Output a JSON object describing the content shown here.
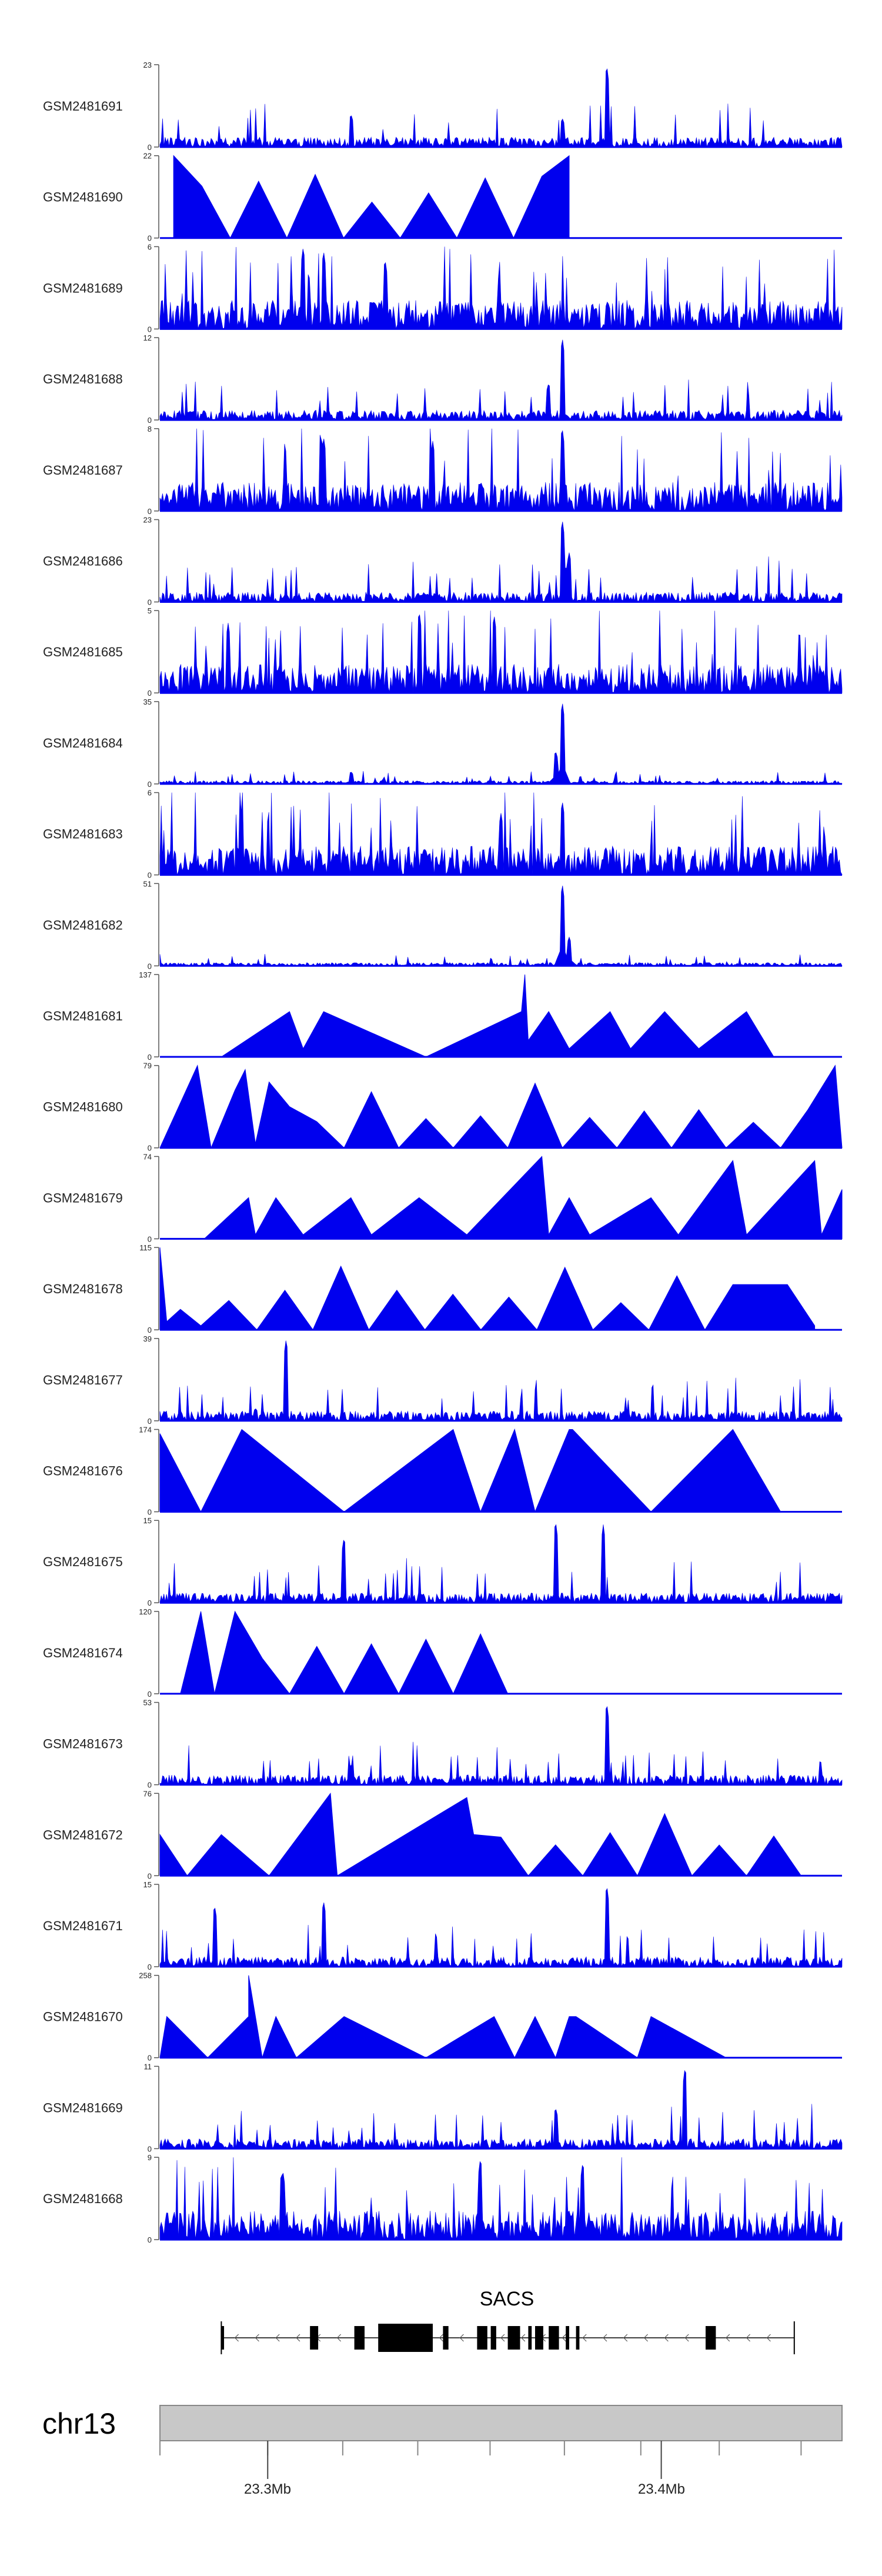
{
  "chart_data": {
    "type": "area",
    "colors": {
      "signal": "#0000ee",
      "axis": "#555555",
      "ideogram_fill": "#c8c8c8",
      "ideogram_stroke": "#888888",
      "gene": "#000000"
    },
    "tracks": [
      {
        "label": "GSM2481691",
        "ylim": [
          0,
          23
        ],
        "pattern": "noisy",
        "peaks": [
          [
            0.28,
            0.4
          ],
          [
            0.59,
            0.35
          ],
          [
            0.655,
            1.0
          ]
        ]
      },
      {
        "label": "GSM2481690",
        "ylim": [
          0,
          22
        ],
        "pattern": "triangles",
        "peaks": [
          [
            0.02,
            1.0
          ],
          [
            0.6,
            1.0
          ],
          [
            0.56,
            0.75
          ]
        ]
      },
      {
        "label": "GSM2481689",
        "ylim": [
          0,
          6
        ],
        "pattern": "dense",
        "peaks": [
          [
            0.21,
            1.0
          ],
          [
            0.24,
            0.95
          ],
          [
            0.33,
            0.85
          ]
        ]
      },
      {
        "label": "GSM2481688",
        "ylim": [
          0,
          12
        ],
        "pattern": "noisy",
        "peaks": [
          [
            0.59,
            1.0
          ],
          [
            0.57,
            0.45
          ]
        ]
      },
      {
        "label": "GSM2481687",
        "ylim": [
          0,
          8
        ],
        "pattern": "dense",
        "peaks": [
          [
            0.59,
            1.0
          ],
          [
            0.24,
            0.9
          ],
          [
            0.4,
            0.85
          ]
        ]
      },
      {
        "label": "GSM2481686",
        "ylim": [
          0,
          23
        ],
        "pattern": "noisy",
        "peaks": [
          [
            0.59,
            1.0
          ],
          [
            0.6,
            0.6
          ]
        ]
      },
      {
        "label": "GSM2481685",
        "ylim": [
          0,
          5
        ],
        "pattern": "dense",
        "peaks": [
          [
            0.38,
            1.0
          ],
          [
            0.49,
            0.95
          ],
          [
            0.1,
            0.85
          ]
        ]
      },
      {
        "label": "GSM2481684",
        "ylim": [
          0,
          35
        ],
        "pattern": "peaked",
        "peaks": [
          [
            0.59,
            1.0
          ],
          [
            0.28,
            0.15
          ],
          [
            0.58,
            0.4
          ]
        ]
      },
      {
        "label": "GSM2481683",
        "ylim": [
          0,
          6
        ],
        "pattern": "dense",
        "peaks": [
          [
            0.59,
            0.9
          ],
          [
            0.12,
            0.8
          ],
          [
            0.5,
            0.75
          ]
        ]
      },
      {
        "label": "GSM2481682",
        "ylim": [
          0,
          51
        ],
        "pattern": "peaked",
        "peaks": [
          [
            0.59,
            1.0
          ],
          [
            0.6,
            0.35
          ]
        ]
      },
      {
        "label": "GSM2481681",
        "ylim": [
          0,
          137
        ],
        "pattern": "triangles",
        "peaks": [
          [
            0.09,
            0
          ],
          [
            0.19,
            0.55
          ],
          [
            0.21,
            0.1
          ],
          [
            0.24,
            0.55
          ],
          [
            0.39,
            0
          ],
          [
            0.53,
            0.55
          ],
          [
            0.535,
            1.0
          ],
          [
            0.54,
            0.2
          ],
          [
            0.57,
            0.55
          ],
          [
            0.6,
            0.1
          ],
          [
            0.66,
            0.55
          ],
          [
            0.69,
            0.1
          ],
          [
            0.74,
            0.55
          ],
          [
            0.79,
            0.1
          ],
          [
            0.86,
            0.55
          ],
          [
            0.9,
            0
          ]
        ]
      },
      {
        "label": "GSM2481680",
        "ylim": [
          0,
          79
        ],
        "pattern": "triangles",
        "peaks": [
          [
            0.0,
            0
          ],
          [
            0.055,
            1.0
          ],
          [
            0.075,
            0
          ],
          [
            0.11,
            0.7
          ],
          [
            0.125,
            0.95
          ],
          [
            0.14,
            0.05
          ],
          [
            0.16,
            0.8
          ],
          [
            0.19,
            0.5
          ],
          [
            0.99,
            1.0
          ],
          [
            1.0,
            0
          ]
        ]
      },
      {
        "label": "GSM2481679",
        "ylim": [
          0,
          74
        ],
        "pattern": "triangles",
        "peaks": [
          [
            0.065,
            0
          ],
          [
            0.13,
            0.5
          ],
          [
            0.14,
            0.05
          ],
          [
            0.17,
            0.5
          ],
          [
            0.21,
            0.05
          ],
          [
            0.28,
            0.5
          ],
          [
            0.31,
            0.05
          ],
          [
            0.38,
            0.5
          ],
          [
            0.45,
            0.05
          ],
          [
            0.56,
            1.0
          ],
          [
            0.57,
            0.05
          ],
          [
            0.6,
            0.5
          ],
          [
            0.63,
            0.05
          ],
          [
            0.72,
            0.5
          ],
          [
            0.76,
            0.05
          ],
          [
            0.84,
            0.95
          ],
          [
            0.86,
            0.05
          ],
          [
            0.96,
            0.95
          ],
          [
            0.97,
            0.05
          ],
          [
            1.0,
            0.6
          ]
        ]
      },
      {
        "label": "GSM2481678",
        "ylim": [
          0,
          115
        ],
        "pattern": "triangles",
        "peaks": [
          [
            0.0,
            0.0
          ],
          [
            0.0,
            1.0
          ],
          [
            0.01,
            0.1
          ],
          [
            0.03,
            0.25
          ],
          [
            0.06,
            0.05
          ],
          [
            0.84,
            0.55
          ],
          [
            0.92,
            0.55
          ],
          [
            0.96,
            0.05
          ]
        ]
      },
      {
        "label": "GSM2481677",
        "ylim": [
          0,
          39
        ],
        "pattern": "noisy",
        "peaks": [
          [
            0.185,
            1.0
          ],
          [
            0.14,
            0.15
          ],
          [
            0.68,
            0.12
          ]
        ]
      },
      {
        "label": "GSM2481676",
        "ylim": [
          0,
          174
        ],
        "pattern": "triangles",
        "peaks": [
          [
            0.0,
            0.95
          ],
          [
            0.06,
            0.0
          ],
          [
            0.12,
            1.0
          ],
          [
            0.27,
            0.0
          ],
          [
            0.43,
            1.0
          ],
          [
            0.47,
            0.0
          ],
          [
            0.52,
            1.0
          ],
          [
            0.55,
            0.0
          ],
          [
            0.6,
            1.0
          ],
          [
            0.605,
            1.0
          ],
          [
            0.72,
            0.0
          ],
          [
            0.84,
            1.0
          ],
          [
            0.91,
            0.0
          ]
        ]
      },
      {
        "label": "GSM2481675",
        "ylim": [
          0,
          15
        ],
        "pattern": "noisy",
        "peaks": [
          [
            0.58,
            1.0
          ],
          [
            0.65,
            0.95
          ],
          [
            0.27,
            0.8
          ]
        ]
      },
      {
        "label": "GSM2481674",
        "ylim": [
          0,
          120
        ],
        "pattern": "triangles",
        "peaks": [
          [
            0.03,
            0.0
          ],
          [
            0.06,
            1.0
          ],
          [
            0.08,
            0.0
          ],
          [
            0.11,
            1.0
          ],
          [
            0.55,
            0.0
          ]
        ]
      },
      {
        "label": "GSM2481673",
        "ylim": [
          0,
          53
        ],
        "pattern": "noisy",
        "peaks": [
          [
            0.655,
            1.0
          ],
          [
            0.28,
            0.25
          ]
        ]
      },
      {
        "label": "GSM2481672",
        "ylim": [
          0,
          76
        ],
        "pattern": "triangles",
        "peaks": [
          [
            0.0,
            0.5
          ],
          [
            0.04,
            0.0
          ],
          [
            0.09,
            0.5
          ],
          [
            0.16,
            0.0
          ],
          [
            0.25,
            1.0
          ],
          [
            0.26,
            0.0
          ],
          [
            0.45,
            0.95
          ],
          [
            0.46,
            0.5
          ],
          [
            0.98,
            0.0
          ]
        ]
      },
      {
        "label": "GSM2481671",
        "ylim": [
          0,
          15
        ],
        "pattern": "noisy",
        "peaks": [
          [
            0.655,
            1.0
          ],
          [
            0.08,
            0.75
          ],
          [
            0.24,
            0.8
          ]
        ]
      },
      {
        "label": "GSM2481670",
        "ylim": [
          0,
          258
        ],
        "pattern": "triangles",
        "peaks": [
          [
            0.0,
            0.0
          ],
          [
            0.01,
            0.5
          ],
          [
            0.07,
            0.0
          ],
          [
            0.13,
            0.5
          ],
          [
            0.13,
            1.0
          ],
          [
            0.15,
            0.0
          ],
          [
            0.17,
            0.5
          ],
          [
            0.2,
            0.0
          ],
          [
            0.27,
            0.5
          ],
          [
            0.39,
            0.0
          ],
          [
            0.49,
            0.5
          ],
          [
            0.52,
            0.0
          ],
          [
            0.55,
            0.5
          ],
          [
            0.58,
            0.0
          ],
          [
            0.61,
            0.5
          ],
          [
            0.7,
            0.0
          ],
          [
            0.6,
            0.5
          ],
          [
            0.83,
            0.0
          ],
          [
            0.72,
            0.5
          ],
          [
            0.86,
            0.0
          ]
        ]
      },
      {
        "label": "GSM2481669",
        "ylim": [
          0,
          11
        ],
        "pattern": "noisy",
        "peaks": [
          [
            0.77,
            1.0
          ],
          [
            0.58,
            0.5
          ]
        ]
      },
      {
        "label": "GSM2481668",
        "ylim": [
          0,
          9
        ],
        "pattern": "dense",
        "peaks": [
          [
            0.47,
            1.0
          ],
          [
            0.62,
            0.95
          ],
          [
            0.18,
            0.85
          ]
        ]
      }
    ],
    "gene": {
      "name": "SACS",
      "span": [
        0.09,
        0.93
      ],
      "strand": "-",
      "exons": [
        [
          0.09,
          0.094
        ],
        [
          0.22,
          0.232
        ],
        [
          0.285,
          0.3
        ],
        [
          0.32,
          0.4
        ],
        [
          0.415,
          0.423
        ],
        [
          0.465,
          0.48
        ],
        [
          0.485,
          0.493
        ],
        [
          0.51,
          0.528
        ],
        [
          0.54,
          0.545
        ],
        [
          0.55,
          0.562
        ],
        [
          0.57,
          0.585
        ],
        [
          0.595,
          0.6
        ],
        [
          0.61,
          0.615
        ],
        [
          0.8,
          0.815
        ]
      ]
    },
    "chromosome": "chr13",
    "coordinates": [
      "23.3Mb",
      "23.4Mb"
    ]
  }
}
